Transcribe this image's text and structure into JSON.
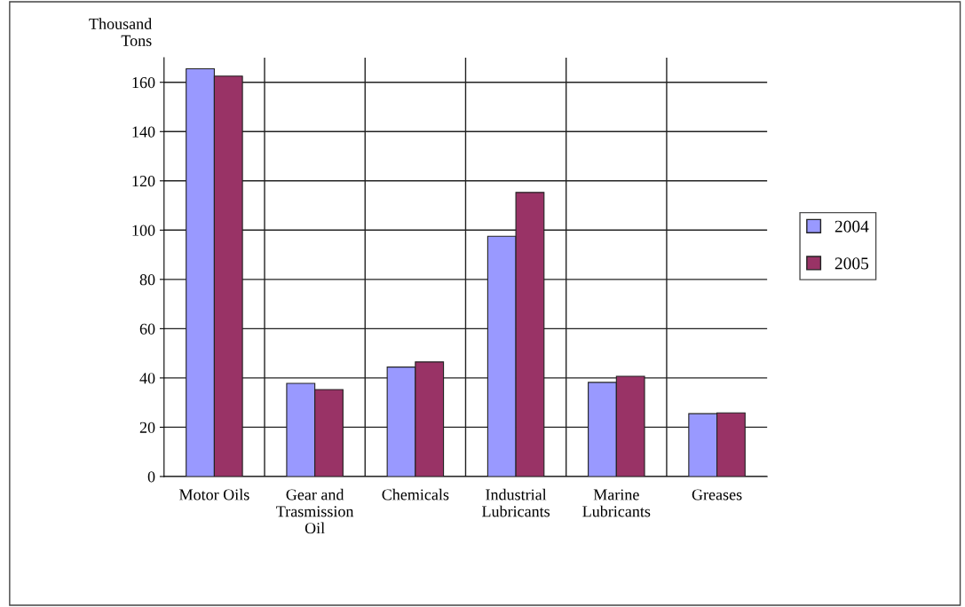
{
  "chart_data": {
    "type": "bar",
    "ylabel": "Thousand\nTons",
    "categories": [
      "Motor Oils",
      "Gear and\nTrasmission\nOil",
      "Chemicals",
      "Industrial\nLubricants",
      "Marine\nLubricants",
      "Greases"
    ],
    "series": [
      {
        "name": "2004",
        "color": "#9999ff",
        "values": [
          165.5,
          37.8,
          44.4,
          97.5,
          38.2,
          25.5
        ]
      },
      {
        "name": "2005",
        "color": "#993366",
        "values": [
          162.5,
          35.3,
          46.5,
          115.3,
          40.7,
          25.8
        ]
      }
    ],
    "ylim": [
      0,
      170
    ],
    "yticks": [
      0,
      20,
      40,
      60,
      80,
      100,
      120,
      140,
      160
    ],
    "grid": true,
    "legend": "right"
  }
}
